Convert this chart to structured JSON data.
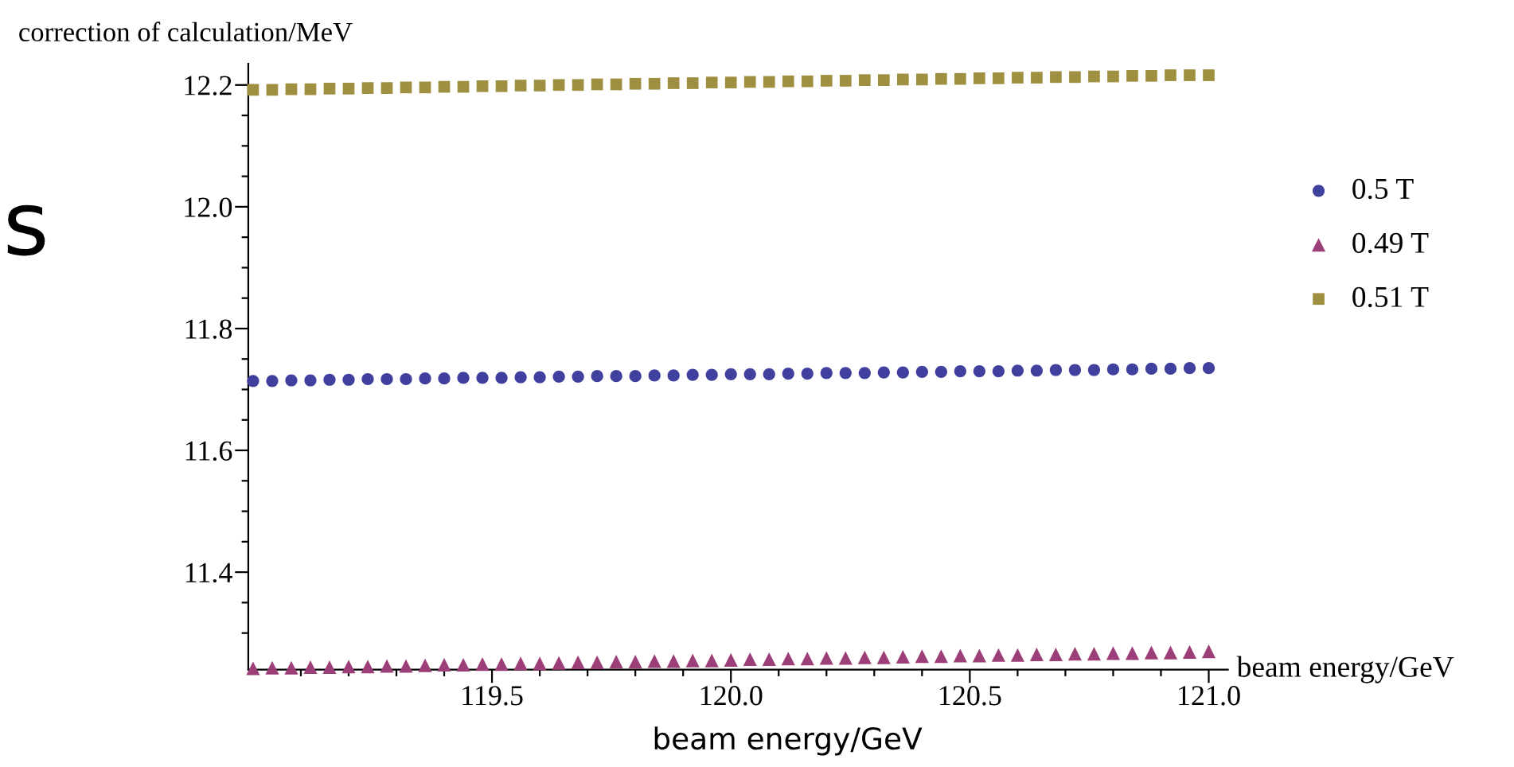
{
  "chart_data": {
    "type": "scatter",
    "ylabel": "correction of calculation/MeV",
    "xlabel": "beam energy/GeV",
    "annotations": [
      "s",
      "beam energy/GeV"
    ],
    "x": [
      119.0,
      119.04,
      119.08,
      119.12,
      119.16,
      119.2,
      119.24,
      119.28,
      119.32,
      119.36,
      119.4,
      119.44,
      119.48,
      119.52,
      119.56,
      119.6,
      119.64,
      119.68,
      119.72,
      119.76,
      119.8,
      119.84,
      119.88,
      119.92,
      119.96,
      120.0,
      120.04,
      120.08,
      120.12,
      120.16,
      120.2,
      120.24,
      120.28,
      120.32,
      120.36,
      120.4,
      120.44,
      120.48,
      120.52,
      120.56,
      120.6,
      120.64,
      120.68,
      120.72,
      120.76,
      120.8,
      120.84,
      120.88,
      120.92,
      120.96,
      121.0
    ],
    "series": [
      {
        "name": "0.5 T",
        "color": "#40409f",
        "marker": "circle",
        "values": [
          11.714,
          11.714,
          11.715,
          11.715,
          11.716,
          11.716,
          11.717,
          11.717,
          11.717,
          11.718,
          11.718,
          11.719,
          11.719,
          11.719,
          11.72,
          11.72,
          11.721,
          11.721,
          11.722,
          11.722,
          11.722,
          11.723,
          11.723,
          11.724,
          11.724,
          11.725,
          11.725,
          11.725,
          11.726,
          11.726,
          11.727,
          11.727,
          11.727,
          11.728,
          11.728,
          11.729,
          11.729,
          11.73,
          11.73,
          11.73,
          11.731,
          11.731,
          11.732,
          11.732,
          11.732,
          11.733,
          11.733,
          11.734,
          11.734,
          11.735,
          11.735
        ]
      },
      {
        "name": "0.49 T",
        "color": "#9c3f78",
        "marker": "triangle",
        "values": [
          11.242,
          11.243,
          11.243,
          11.244,
          11.244,
          11.245,
          11.245,
          11.246,
          11.246,
          11.247,
          11.248,
          11.248,
          11.249,
          11.249,
          11.25,
          11.25,
          11.251,
          11.252,
          11.252,
          11.253,
          11.253,
          11.254,
          11.254,
          11.255,
          11.255,
          11.256,
          11.257,
          11.257,
          11.258,
          11.258,
          11.259,
          11.259,
          11.26,
          11.26,
          11.261,
          11.262,
          11.262,
          11.263,
          11.263,
          11.264,
          11.264,
          11.265,
          11.265,
          11.266,
          11.266,
          11.267,
          11.267,
          11.268,
          11.268,
          11.269,
          11.27
        ]
      },
      {
        "name": "0.51 T",
        "color": "#9f8f40",
        "marker": "square",
        "values": [
          12.192,
          12.192,
          12.193,
          12.193,
          12.194,
          12.194,
          12.195,
          12.195,
          12.196,
          12.196,
          12.197,
          12.197,
          12.198,
          12.198,
          12.199,
          12.199,
          12.2,
          12.2,
          12.201,
          12.201,
          12.202,
          12.202,
          12.203,
          12.203,
          12.204,
          12.204,
          12.205,
          12.205,
          12.206,
          12.206,
          12.207,
          12.207,
          12.208,
          12.208,
          12.209,
          12.209,
          12.21,
          12.21,
          12.211,
          12.211,
          12.212,
          12.212,
          12.213,
          12.213,
          12.214,
          12.214,
          12.215,
          12.215,
          12.216,
          12.216,
          12.216
        ]
      }
    ],
    "xlim": [
      118.99,
      121.04
    ],
    "ylim": [
      11.24,
      12.235
    ],
    "xticks": [
      {
        "value": 119.1,
        "label": null
      },
      {
        "value": 119.2,
        "label": null
      },
      {
        "value": 119.3,
        "label": null
      },
      {
        "value": 119.4,
        "label": null
      },
      {
        "value": 119.5,
        "label": "119.5"
      },
      {
        "value": 119.6,
        "label": null
      },
      {
        "value": 119.7,
        "label": null
      },
      {
        "value": 119.8,
        "label": null
      },
      {
        "value": 119.9,
        "label": null
      },
      {
        "value": 120.0,
        "label": "120.0"
      },
      {
        "value": 120.1,
        "label": null
      },
      {
        "value": 120.2,
        "label": null
      },
      {
        "value": 120.3,
        "label": null
      },
      {
        "value": 120.4,
        "label": null
      },
      {
        "value": 120.5,
        "label": "120.5"
      },
      {
        "value": 120.6,
        "label": null
      },
      {
        "value": 120.7,
        "label": null
      },
      {
        "value": 120.8,
        "label": null
      },
      {
        "value": 120.9,
        "label": null
      },
      {
        "value": 121.0,
        "label": "121.0"
      }
    ],
    "yticks": [
      {
        "value": 11.3,
        "label": null
      },
      {
        "value": 11.35,
        "label": null
      },
      {
        "value": 11.4,
        "label": "11.4"
      },
      {
        "value": 11.45,
        "label": null
      },
      {
        "value": 11.5,
        "label": null
      },
      {
        "value": 11.55,
        "label": null
      },
      {
        "value": 11.6,
        "label": "11.6"
      },
      {
        "value": 11.65,
        "label": null
      },
      {
        "value": 11.7,
        "label": null
      },
      {
        "value": 11.75,
        "label": null
      },
      {
        "value": 11.8,
        "label": "11.8"
      },
      {
        "value": 11.85,
        "label": null
      },
      {
        "value": 11.9,
        "label": null
      },
      {
        "value": 11.95,
        "label": null
      },
      {
        "value": 12.0,
        "label": "12.0"
      },
      {
        "value": 12.05,
        "label": null
      },
      {
        "value": 12.1,
        "label": null
      },
      {
        "value": 12.15,
        "label": null
      },
      {
        "value": 12.2,
        "label": "12.2"
      }
    ],
    "grid": false,
    "legend": "right"
  }
}
